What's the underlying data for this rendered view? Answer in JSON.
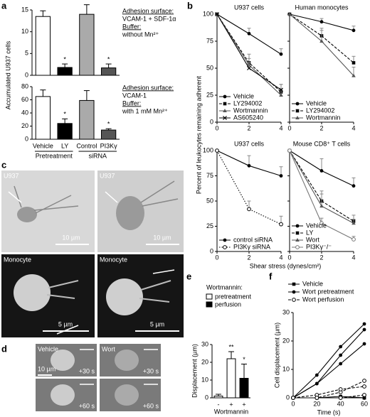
{
  "panel_letters": [
    "a",
    "b",
    "c",
    "d",
    "e",
    "f"
  ],
  "images": {
    "c": {
      "labels": [
        "U937",
        "U937",
        "Monocyte",
        "Monocyte"
      ],
      "scale_bars": [
        "10 µm",
        "10 µm",
        "5 µm",
        "5 µm"
      ]
    },
    "d": {
      "labels": [
        "Vehicle",
        "Wort"
      ],
      "times": [
        "+30 s",
        "+30 s",
        "+60 s",
        "+60 s"
      ],
      "scale_bar": "10 µm"
    }
  },
  "chart_data": [
    {
      "type": "bar",
      "ylabel": "Accumulated U937 cells",
      "categories": [
        null,
        null,
        null,
        null
      ],
      "values": [
        13.5,
        1.8,
        14,
        1.7
      ],
      "errors": [
        1.3,
        0.8,
        2.2,
        0.9
      ],
      "colors": [
        "#ffffff",
        "#000000",
        "#aaaaaa",
        "#555555"
      ],
      "annotations": [
        null,
        "*",
        null,
        "*"
      ],
      "ylim": [
        0,
        15
      ],
      "yticks": [
        0,
        5,
        10,
        15
      ],
      "notes": [
        "Adhesion surface:",
        "VCAM-1 + SDF-1α",
        "Buffer:",
        "without Mn²⁺"
      ]
    },
    {
      "type": "bar",
      "categories": [
        "Vehicle",
        "LY",
        "Control",
        "PI3Kγ"
      ],
      "groups": [
        "Pretreatment",
        "siRNA"
      ],
      "values": [
        65,
        24,
        59,
        14
      ],
      "errors": [
        10,
        7,
        15,
        2
      ],
      "colors": [
        "#ffffff",
        "#000000",
        "#aaaaaa",
        "#555555"
      ],
      "annotations": [
        null,
        "*",
        null,
        "*"
      ],
      "ylim": [
        0,
        80
      ],
      "yticks": [
        0,
        20,
        40,
        60,
        80
      ],
      "notes": [
        "Adhesion surface:",
        "VCAM-1",
        "Buffer:",
        "with 1 mM Mn²⁺"
      ]
    },
    {
      "type": "line",
      "title": "U937 cells",
      "ylabel": "Percent of leukocytes remaining adherent",
      "x": [
        0,
        2,
        4
      ],
      "xlim": [
        0,
        4
      ],
      "xticks": [
        0,
        2,
        4
      ],
      "ylim": [
        0,
        100
      ],
      "yticks": [
        0,
        25,
        50,
        75,
        100
      ],
      "show_ytick_labels": true,
      "legend": "lower left",
      "series": [
        {
          "name": "Vehicle",
          "color": "#000000",
          "marker": "circle",
          "dash": "solid",
          "values": [
            100,
            82,
            63
          ],
          "errors": [
            0,
            5,
            5
          ]
        },
        {
          "name": "LY294002",
          "color": "#000000",
          "marker": "square",
          "dash": "dashed",
          "values": [
            100,
            55,
            28
          ],
          "errors": [
            0,
            8,
            7
          ]
        },
        {
          "name": "Wortmannin",
          "color": "#555555",
          "marker": "triangle",
          "dash": "solid",
          "values": [
            100,
            53,
            25
          ],
          "errors": [
            0,
            6,
            5
          ]
        },
        {
          "name": "AS605240",
          "color": "#000000",
          "marker": "x",
          "dash": "solid",
          "values": [
            100,
            50,
            30
          ],
          "errors": [
            0,
            5,
            5
          ]
        }
      ]
    },
    {
      "type": "line",
      "title": "Human monocytes",
      "x": [
        0,
        2,
        4
      ],
      "xlim": [
        0,
        4
      ],
      "xticks": [
        0,
        2,
        4
      ],
      "ylim": [
        0,
        100
      ],
      "yticks": [
        0,
        25,
        50,
        75,
        100
      ],
      "show_ytick_labels": false,
      "legend": "lower left",
      "series": [
        {
          "name": "Vehicle",
          "color": "#000000",
          "marker": "circle",
          "dash": "solid",
          "values": [
            100,
            93,
            85
          ],
          "errors": [
            0,
            3,
            4
          ]
        },
        {
          "name": "LY294002",
          "color": "#000000",
          "marker": "square",
          "dash": "dashed",
          "values": [
            100,
            80,
            55
          ],
          "errors": [
            0,
            7,
            6
          ]
        },
        {
          "name": "Wortmannin",
          "color": "#555555",
          "marker": "triangle",
          "dash": "solid",
          "values": [
            100,
            75,
            43
          ],
          "errors": [
            0,
            10,
            8
          ]
        }
      ]
    },
    {
      "type": "line",
      "title": "U937 cells",
      "x": [
        0,
        2,
        4
      ],
      "xlim": [
        0,
        4
      ],
      "xticks": [
        0,
        2,
        4
      ],
      "ylim": [
        0,
        100
      ],
      "yticks": [
        0,
        25,
        50,
        75,
        100
      ],
      "show_ytick_labels": true,
      "legend": "lower left",
      "series": [
        {
          "name": "control siRNA",
          "color": "#000000",
          "marker": "circle",
          "dash": "solid",
          "values": [
            100,
            85,
            75
          ],
          "errors": [
            0,
            10,
            9
          ]
        },
        {
          "name": "PI3Kγ siRNA",
          "color": "#000000",
          "marker": "open-circle",
          "dash": "dotted",
          "values": [
            100,
            42,
            27
          ],
          "errors": [
            0,
            8,
            8
          ]
        }
      ]
    },
    {
      "type": "line",
      "title": "Mouse CD8⁺ T cells",
      "xlabel": "Shear stress (dynes/cm²)",
      "x": [
        0,
        2,
        4
      ],
      "xlim": [
        0,
        4
      ],
      "xticks": [
        0,
        2,
        4
      ],
      "ylim": [
        0,
        100
      ],
      "yticks": [
        0,
        25,
        50,
        75,
        100
      ],
      "show_ytick_labels": false,
      "legend": "lower left",
      "series": [
        {
          "name": "Vehicle",
          "color": "#000000",
          "marker": "circle",
          "dash": "solid",
          "values": [
            100,
            80,
            65
          ],
          "errors": [
            0,
            12,
            8
          ]
        },
        {
          "name": "LY",
          "color": "#000000",
          "marker": "square",
          "dash": "dashed",
          "values": [
            100,
            50,
            30
          ],
          "errors": [
            0,
            10,
            6
          ]
        },
        {
          "name": "Wort",
          "color": "#555555",
          "marker": "triangle",
          "dash": "solid",
          "values": [
            100,
            45,
            28
          ],
          "errors": [
            0,
            12,
            4
          ]
        },
        {
          "name": "PI3Kγ⁻/⁻",
          "color": "#777777",
          "marker": "open-circle",
          "dash": "solid",
          "values": [
            100,
            28,
            12
          ],
          "errors": [
            0,
            5,
            3
          ]
        }
      ]
    },
    {
      "type": "bar",
      "ylabel": "Displacement (µm)",
      "xlabel": "Wortmannin",
      "categories": [
        "-",
        "+",
        "+"
      ],
      "values": [
        1,
        22,
        11
      ],
      "errors": [
        1,
        4,
        8
      ],
      "colors": [
        "#ffffff",
        "#ffffff",
        "#000000"
      ],
      "annotations": [
        null,
        "**",
        "*"
      ],
      "ylim": [
        0,
        30
      ],
      "yticks": [
        0,
        10,
        20,
        30
      ],
      "legend_title": "Wortmannin:",
      "legend_items": [
        {
          "name": "pretreatment",
          "color": "#ffffff"
        },
        {
          "name": "perfusion",
          "color": "#000000"
        }
      ]
    },
    {
      "type": "line",
      "ylabel": "Cell displacement (µm)",
      "xlabel": "Time (s)",
      "x": [
        0,
        20,
        40,
        60
      ],
      "xlim": [
        0,
        60
      ],
      "xticks": [
        0,
        20,
        40,
        60
      ],
      "ylim": [
        0,
        30
      ],
      "yticks": [
        0,
        10,
        20,
        30
      ],
      "show_ytick_labels": true,
      "legend": "top",
      "series": [
        {
          "name": "Vehicle",
          "color": "#000000",
          "marker": "square",
          "dash": "solid",
          "lines": [
            [
              0,
              0,
              0,
              0
            ],
            [
              0,
              0,
              0.5,
              0
            ]
          ]
        },
        {
          "name": "Wort pretreatment",
          "color": "#000000",
          "marker": "circle",
          "dash": "solid",
          "lines": [
            [
              0,
              8,
              18,
              26
            ],
            [
              0,
              5,
              15,
              24
            ],
            [
              0,
              5,
              12,
              19
            ]
          ]
        },
        {
          "name": "Wort perfusion",
          "color": "#000000",
          "marker": "open-circle",
          "dash": "dashed",
          "lines": [
            [
              0,
              0,
              2,
              6
            ],
            [
              0,
              1,
              3,
              4
            ],
            [
              0,
              0,
              0,
              1
            ]
          ]
        }
      ]
    }
  ]
}
